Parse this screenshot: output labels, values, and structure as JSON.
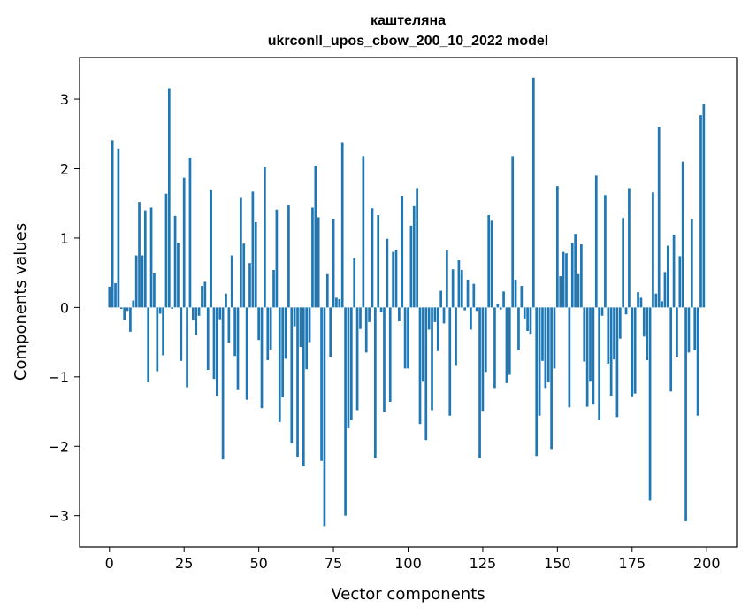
{
  "chart_data": {
    "type": "bar",
    "title_line1": "каштеляна",
    "title_line2": "ukrconll_upos_cbow_200_10_2022 model",
    "xlabel": "Vector components",
    "ylabel": "Components values",
    "xlim": [
      -10,
      210
    ],
    "ylim": [
      -3.45,
      3.6
    ],
    "xticks": [
      0,
      25,
      50,
      75,
      100,
      125,
      150,
      175,
      200
    ],
    "yticks": [
      -3,
      -2,
      -1,
      0,
      1,
      2,
      3
    ],
    "xtick_labels": [
      "0",
      "25",
      "50",
      "75",
      "100",
      "125",
      "150",
      "175",
      "200"
    ],
    "ytick_labels": [
      "−3",
      "−2",
      "−1",
      "0",
      "1",
      "2",
      "3"
    ],
    "bar_color": "#1f77b4",
    "values": [
      0.3,
      2.41,
      0.35,
      2.29,
      -0.02,
      -0.18,
      -0.05,
      -0.35,
      0.1,
      0.75,
      1.52,
      0.75,
      1.4,
      -1.08,
      1.44,
      0.49,
      -0.92,
      -0.09,
      -0.69,
      1.64,
      3.16,
      -0.02,
      1.32,
      0.93,
      -0.77,
      1.87,
      -1.15,
      2.16,
      -0.18,
      -0.39,
      -0.12,
      0.31,
      0.37,
      -0.9,
      1.69,
      -1.03,
      -1.27,
      -0.17,
      -2.19,
      0.2,
      -0.51,
      0.75,
      -0.7,
      -1.19,
      1.58,
      0.92,
      -1.33,
      0.64,
      1.67,
      1.23,
      -0.47,
      -1.45,
      2.02,
      -0.76,
      -0.61,
      0.54,
      1.41,
      -1.65,
      -1.29,
      -0.74,
      1.47,
      -1.96,
      -0.27,
      -2.15,
      -0.57,
      -2.29,
      -0.89,
      -0.5,
      1.44,
      2.04,
      1.3,
      -2.21,
      -3.15,
      0.48,
      -0.71,
      1.27,
      0.14,
      0.12,
      2.37,
      -3.0,
      -1.74,
      -1.62,
      0.71,
      -1.48,
      -0.31,
      2.18,
      -0.65,
      -0.21,
      1.43,
      -2.17,
      1.33,
      -0.07,
      -1.51,
      0.99,
      -1.36,
      0.8,
      0.83,
      -0.2,
      1.6,
      -0.88,
      -0.88,
      1.18,
      1.46,
      1.72,
      -1.68,
      -1.07,
      -1.91,
      -0.32,
      -1.48,
      -0.21,
      -0.63,
      0.24,
      -0.23,
      0.82,
      -1.56,
      0.55,
      -0.83,
      0.68,
      0.54,
      -0.04,
      0.4,
      -0.32,
      0.34,
      -0.05,
      -2.17,
      -1.49,
      -0.93,
      1.33,
      1.25,
      -1.16,
      0.05,
      -0.03,
      0.23,
      -1.09,
      -0.97,
      2.18,
      0.4,
      -0.62,
      0.31,
      -0.16,
      -0.34,
      -0.38,
      3.31,
      -2.14,
      -1.56,
      -0.77,
      -1.16,
      -1.08,
      -2.04,
      -0.88,
      1.75,
      0.45,
      0.8,
      0.78,
      -1.44,
      0.93,
      1.06,
      0.48,
      0.91,
      -0.78,
      -1.43,
      -1.07,
      -1.4,
      1.9,
      -1.62,
      -0.12,
      1.62,
      -0.81,
      -1.27,
      -0.75,
      -1.58,
      -0.45,
      1.29,
      -0.1,
      1.72,
      -1.28,
      -1.24,
      0.22,
      0.14,
      -0.42,
      -0.76,
      -2.78,
      1.66,
      0.2,
      2.6,
      0.09,
      0.51,
      0.89,
      -1.21,
      1.05,
      -0.71,
      0.74,
      2.1,
      -3.08,
      -0.65,
      1.27,
      -0.62,
      -1.56,
      2.77,
      2.93
    ]
  }
}
